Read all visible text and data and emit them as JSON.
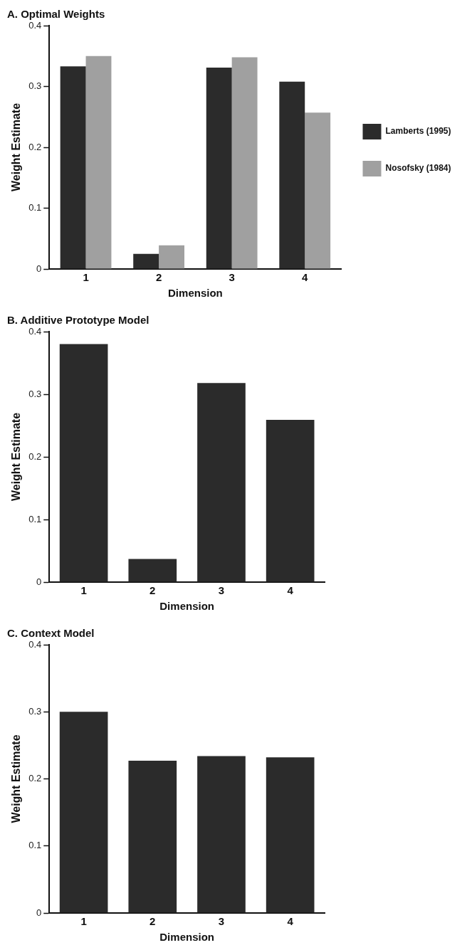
{
  "chart_data": [
    {
      "type": "bar",
      "title": "A. Optimal Weights",
      "xlabel": "Dimension",
      "ylabel": "Weight Estimate",
      "categories": [
        "1",
        "2",
        "3",
        "4"
      ],
      "series": [
        {
          "name": "Lamberts (1995)",
          "color": "#2b2b2b",
          "values": [
            0.333,
            0.025,
            0.331,
            0.308
          ]
        },
        {
          "name": "Nosofsky (1984)",
          "color": "#a0a0a0",
          "values": [
            0.35,
            0.039,
            0.348,
            0.257
          ]
        }
      ],
      "ylim": [
        0,
        0.4
      ],
      "yticks": [
        0,
        0.1,
        0.2,
        0.3,
        0.4
      ],
      "grid": false,
      "legend": "right"
    },
    {
      "type": "bar",
      "title": "B. Additive Prototype Model",
      "xlabel": "Dimension",
      "ylabel": "Weight Estimate",
      "categories": [
        "1",
        "2",
        "3",
        "4"
      ],
      "color": "#2b2b2b",
      "values": [
        0.38,
        0.037,
        0.318,
        0.259
      ],
      "ylim": [
        0,
        0.4
      ],
      "yticks": [
        0,
        0.1,
        0.2,
        0.3,
        0.4
      ],
      "grid": false
    },
    {
      "type": "bar",
      "title": "C. Context Model",
      "xlabel": "Dimension",
      "ylabel": "Weight Estimate",
      "categories": [
        "1",
        "2",
        "3",
        "4"
      ],
      "color": "#2b2b2b",
      "values": [
        0.3,
        0.227,
        0.234,
        0.232
      ],
      "ylim": [
        0,
        0.4
      ],
      "yticks": [
        0,
        0.1,
        0.2,
        0.3,
        0.4
      ],
      "grid": false
    }
  ]
}
